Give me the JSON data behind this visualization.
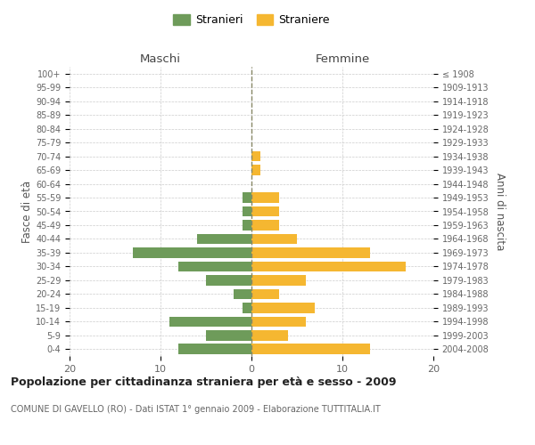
{
  "age_groups": [
    "0-4",
    "5-9",
    "10-14",
    "15-19",
    "20-24",
    "25-29",
    "30-34",
    "35-39",
    "40-44",
    "45-49",
    "50-54",
    "55-59",
    "60-64",
    "65-69",
    "70-74",
    "75-79",
    "80-84",
    "85-89",
    "90-94",
    "95-99",
    "100+"
  ],
  "birth_years": [
    "2004-2008",
    "1999-2003",
    "1994-1998",
    "1989-1993",
    "1984-1988",
    "1979-1983",
    "1974-1978",
    "1969-1973",
    "1964-1968",
    "1959-1963",
    "1954-1958",
    "1949-1953",
    "1944-1948",
    "1939-1943",
    "1934-1938",
    "1929-1933",
    "1924-1928",
    "1919-1923",
    "1914-1918",
    "1909-1913",
    "≤ 1908"
  ],
  "males": [
    8,
    5,
    9,
    1,
    2,
    5,
    8,
    13,
    6,
    1,
    1,
    1,
    0,
    0,
    0,
    0,
    0,
    0,
    0,
    0,
    0
  ],
  "females": [
    13,
    4,
    6,
    7,
    3,
    6,
    17,
    13,
    5,
    3,
    3,
    3,
    0,
    1,
    1,
    0,
    0,
    0,
    0,
    0,
    0
  ],
  "male_color": "#6e9b5a",
  "female_color": "#f5b731",
  "grid_color": "#cccccc",
  "dashed_line_color": "#888866",
  "title": "Popolazione per cittadinanza straniera per età e sesso - 2009",
  "subtitle": "COMUNE DI GAVELLO (RO) - Dati ISTAT 1° gennaio 2009 - Elaborazione TUTTITALIA.IT",
  "ylabel_left": "Fasce di età",
  "ylabel_right": "Anni di nascita",
  "xlabel_left": "Maschi",
  "xlabel_right": "Femmine",
  "legend_male": "Stranieri",
  "legend_female": "Straniere",
  "xlim": 20,
  "bg_color": "#ffffff"
}
